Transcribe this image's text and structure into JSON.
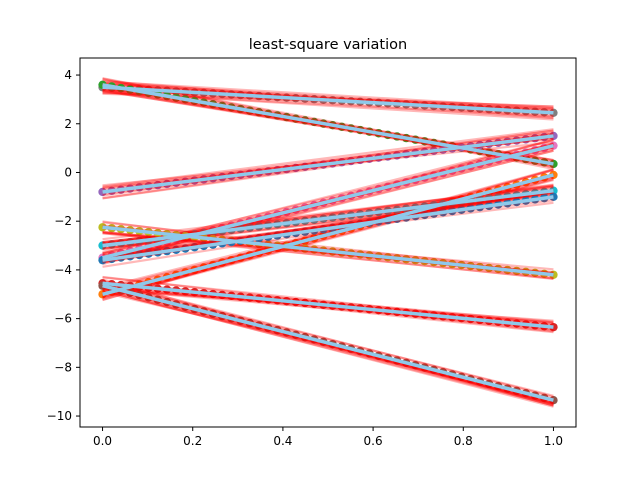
{
  "chart_data": {
    "type": "line",
    "title": "least-square variation",
    "xlabel": "",
    "ylabel": "",
    "xlim": [
      -0.05,
      1.05
    ],
    "ylim": [
      -10.45,
      4.7
    ],
    "xticks": [
      0.0,
      0.2,
      0.4,
      0.6,
      0.8,
      1.0
    ],
    "xtick_labels": [
      "0.0",
      "0.2",
      "0.4",
      "0.6",
      "0.8",
      "1.0"
    ],
    "yticks": [
      -10,
      -8,
      -6,
      -4,
      -2,
      0,
      2,
      4
    ],
    "ytick_labels": [
      "−10",
      "−8",
      "−6",
      "−4",
      "−2",
      "0",
      "2",
      "4"
    ],
    "grid": false,
    "points_per_series": 50,
    "fit_color": "#8ec9ea",
    "band_color": "#ff0000",
    "series": [
      {
        "color": "#7f7f7f",
        "y0": 3.5,
        "y1": 2.45
      },
      {
        "color": "#2ca02c",
        "y0": 3.6,
        "y1": 0.35
      },
      {
        "color": "#9467bd",
        "y0": -0.8,
        "y1": 1.5
      },
      {
        "color": "#e377c2",
        "y0": -3.5,
        "y1": 1.1
      },
      {
        "color": "#ff7f0e",
        "y0": -5.0,
        "y1": -0.1
      },
      {
        "color": "#17becf",
        "y0": -3.0,
        "y1": -0.75
      },
      {
        "color": "#bcbd22",
        "y0": -2.25,
        "y1": -4.2
      },
      {
        "color": "#1f77b4",
        "y0": -3.6,
        "y1": -1.0
      },
      {
        "color": "#d62728",
        "y0": -4.55,
        "y1": -6.35
      },
      {
        "color": "#8c564b",
        "y0": -4.65,
        "y1": -9.35
      }
    ]
  }
}
